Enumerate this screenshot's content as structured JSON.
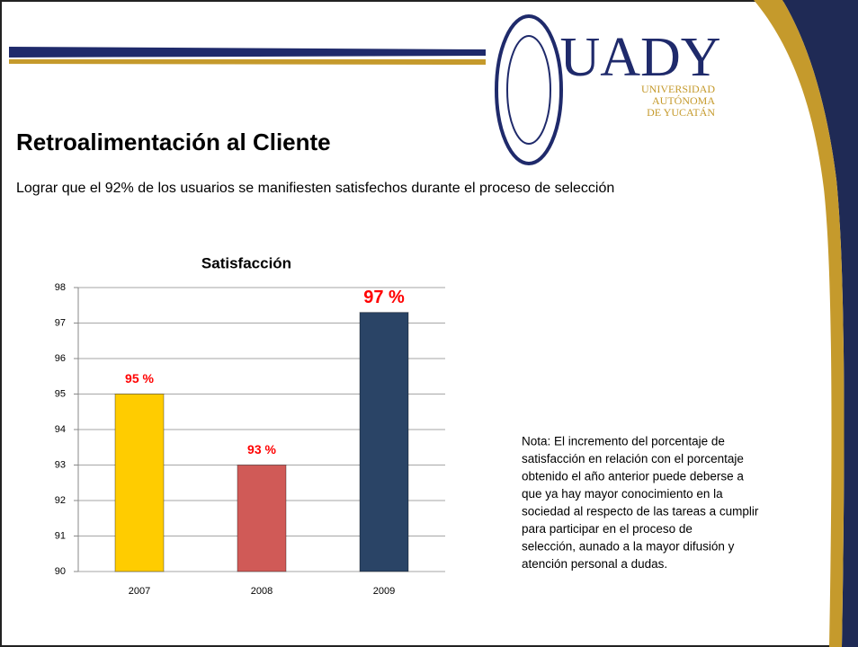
{
  "header": {
    "logo_name": "UADY",
    "logo_subtitle": [
      "UNIVERSIDAD",
      "AUTÓNOMA",
      "DE YUCATÁN"
    ]
  },
  "title": "Retroalimentación al Cliente",
  "subtitle": "Lograr que el 92% de los usuarios se manifiesten satisfechos durante el proceso de selección",
  "note": [
    "Nota: El incremento del porcentaje de",
    "satisfacción en relación con el porcentaje",
    "obtenido el año anterior puede deberse a",
    "que  ya hay mayor conocimiento en la",
    "sociedad al respecto de las tareas a cumplir",
    "para participar en el proceso de",
    "selección, aunado a la mayor difusión y",
    "atención  personal a dudas."
  ],
  "chart_data": {
    "type": "bar",
    "title": "Satisfacción",
    "categories": [
      "2007",
      "2008",
      "2009"
    ],
    "values": [
      95,
      93,
      97.3
    ],
    "value_labels": [
      "95 %",
      "93 %",
      "97 %"
    ],
    "colors": [
      "#ffcc00",
      "#d05a57",
      "#2a4466"
    ],
    "label_color": "#ff0000",
    "ylim": [
      90,
      98
    ],
    "yticks": [
      90,
      91,
      92,
      93,
      94,
      95,
      96,
      97,
      98
    ],
    "grid": true
  }
}
